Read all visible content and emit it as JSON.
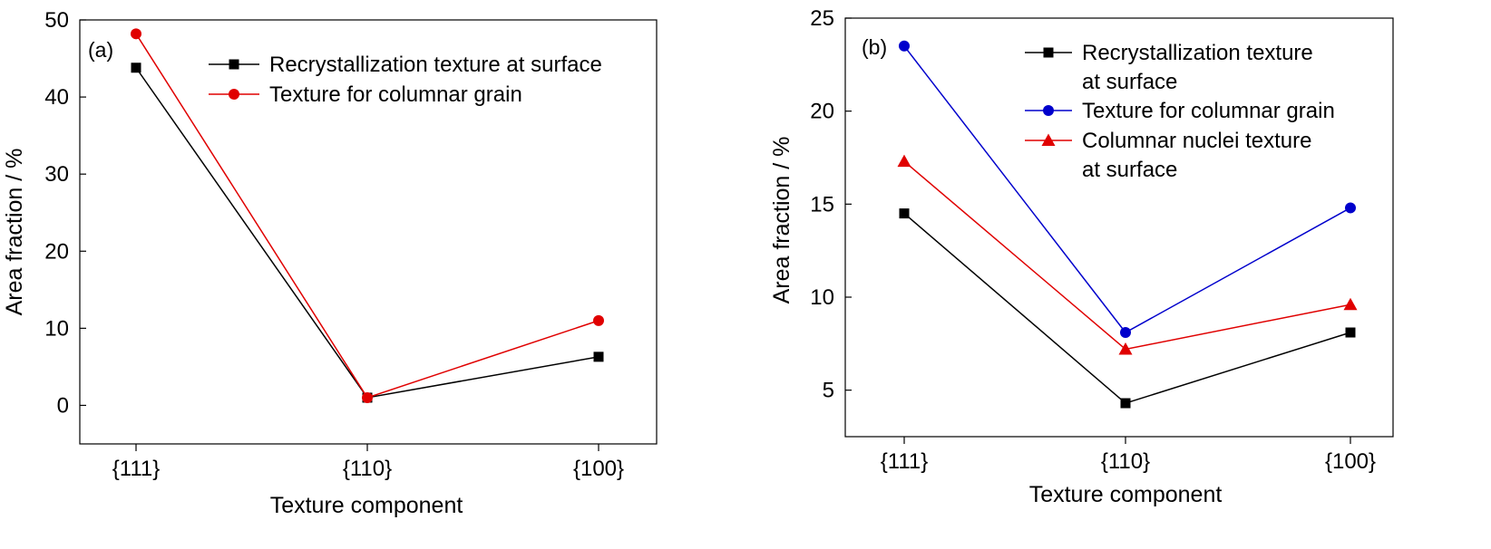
{
  "chart_data": [
    {
      "type": "line",
      "panel_label": "(a)",
      "xlabel": "Texture component",
      "ylabel": "Area fraction / %",
      "categories": [
        "{111}",
        "{110}",
        "{100}"
      ],
      "ylim": [
        -5,
        50
      ],
      "yticks": [
        0,
        10,
        20,
        30,
        40,
        50
      ],
      "grid": false,
      "legend_placement": "top-right",
      "series": [
        {
          "name": "Recrystallization texture at surface",
          "values": [
            43.8,
            1.0,
            6.3
          ],
          "color": "#000000",
          "marker": "square"
        },
        {
          "name": "Texture for columnar grain",
          "values": [
            48.2,
            1.0,
            11.0
          ],
          "color": "#e00000",
          "marker": "circle"
        }
      ]
    },
    {
      "type": "line",
      "panel_label": "(b)",
      "xlabel": "Texture component",
      "ylabel": "Area fraction / %",
      "categories": [
        "{111}",
        "{110}",
        "{100}"
      ],
      "ylim": [
        2.5,
        25
      ],
      "yticks": [
        5,
        10,
        15,
        20,
        25
      ],
      "grid": false,
      "legend_placement": "top-right",
      "series": [
        {
          "name": "Recrystallization texture",
          "name_line2": "at surface",
          "values": [
            14.5,
            4.3,
            8.1
          ],
          "color": "#000000",
          "marker": "square"
        },
        {
          "name": "Texture for columnar grain",
          "values": [
            23.5,
            8.1,
            14.8
          ],
          "color": "#0000cc",
          "marker": "circle"
        },
        {
          "name": "Columnar nuclei texture",
          "name_line2": "at surface",
          "values": [
            17.3,
            7.2,
            9.6
          ],
          "color": "#e00000",
          "marker": "triangle"
        }
      ]
    }
  ]
}
